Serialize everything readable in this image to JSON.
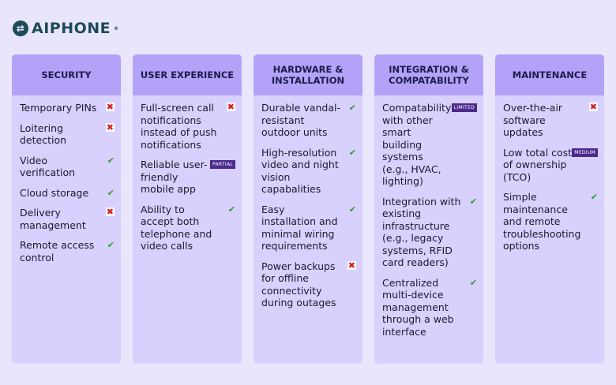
{
  "brand": "AIPHONE",
  "columns": [
    {
      "title": "SECURITY",
      "items": [
        {
          "text": "Temporary PINs",
          "status": "x"
        },
        {
          "text": "Loitering detection",
          "status": "x"
        },
        {
          "text": "Video verification",
          "status": "check"
        },
        {
          "text": "Cloud storage",
          "status": "check"
        },
        {
          "text": "Delivery management",
          "status": "x"
        },
        {
          "text": "Remote access control",
          "status": "check"
        }
      ]
    },
    {
      "title": "USER EXPERIENCE",
      "items": [
        {
          "text": "Full-screen call notifications instead of push notifications",
          "status": "x"
        },
        {
          "text": "Reliable user-friendly mobile app",
          "status": "badge",
          "badge": "PARTIAL"
        },
        {
          "text": "Ability to accept both telephone and video calls",
          "status": "check"
        }
      ]
    },
    {
      "title": "HARDWARE & INSTALLATION",
      "items": [
        {
          "text": "Durable vandal-resistant outdoor units",
          "status": "check"
        },
        {
          "text": "High-resolution video and night vision capabalities",
          "status": "check"
        },
        {
          "text": "Easy installation and minimal wiring requirements",
          "status": "check"
        },
        {
          "text": "Power backups for offline connectivity during outages",
          "status": "x"
        }
      ]
    },
    {
      "title": "INTEGRATION & COMPATABILITY",
      "items": [
        {
          "text": "Compatability with other smart building systems (e.g., HVAC, lighting)",
          "status": "badge",
          "badge": "LIMITED"
        },
        {
          "text": "Integration with existing infrastructure (e.g., legacy systems, RFID card readers)",
          "status": "check"
        },
        {
          "text": "Centralized multi-device management through a web interface",
          "status": "check"
        }
      ]
    },
    {
      "title": "MAINTENANCE",
      "items": [
        {
          "text": "Over-the-air software updates",
          "status": "x"
        },
        {
          "text": "Low total cost of ownership (TCO)",
          "status": "badge",
          "badge": "MEDIUM"
        },
        {
          "text": "Simple maintenance and remote troubleshooting options",
          "status": "check"
        }
      ]
    }
  ]
}
